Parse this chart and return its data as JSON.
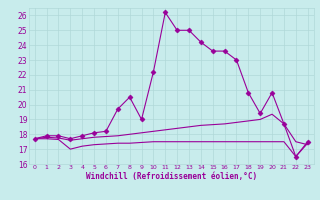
{
  "xlabel": "Windchill (Refroidissement éolien,°C)",
  "xlim": [
    -0.5,
    23.5
  ],
  "ylim": [
    16,
    26.5
  ],
  "yticks": [
    16,
    17,
    18,
    19,
    20,
    21,
    22,
    23,
    24,
    25,
    26
  ],
  "xticks": [
    0,
    1,
    2,
    3,
    4,
    5,
    6,
    7,
    8,
    9,
    10,
    11,
    12,
    13,
    14,
    15,
    16,
    17,
    18,
    19,
    20,
    21,
    22,
    23
  ],
  "background_color": "#c8ecec",
  "grid_color": "#b0d8d8",
  "line_color": "#990099",
  "series": [
    {
      "x": [
        0,
        1,
        2,
        3,
        4,
        5,
        6,
        7,
        8,
        9,
        10,
        11,
        12,
        13,
        14,
        15,
        16,
        17,
        18,
        19,
        20,
        21,
        22,
        23
      ],
      "y": [
        17.7,
        17.9,
        17.9,
        17.7,
        17.9,
        18.1,
        18.2,
        19.7,
        20.5,
        19.0,
        22.2,
        26.2,
        25.0,
        25.0,
        24.2,
        23.6,
        23.6,
        23.0,
        20.8,
        19.4,
        20.8,
        18.7,
        16.5,
        17.5
      ],
      "marker": "D",
      "markersize": 2.5,
      "linestyle": "-"
    },
    {
      "x": [
        0,
        1,
        2,
        3,
        4,
        5,
        6,
        7,
        8,
        9,
        10,
        11,
        12,
        13,
        14,
        15,
        16,
        17,
        18,
        19,
        20,
        21,
        22,
        23
      ],
      "y": [
        17.7,
        17.8,
        17.75,
        17.6,
        17.7,
        17.8,
        17.85,
        17.9,
        18.0,
        18.1,
        18.2,
        18.3,
        18.4,
        18.5,
        18.6,
        18.65,
        18.7,
        18.8,
        18.9,
        19.0,
        19.35,
        18.7,
        17.5,
        17.3
      ],
      "marker": null,
      "markersize": 0,
      "linestyle": "-"
    },
    {
      "x": [
        0,
        1,
        2,
        3,
        4,
        5,
        6,
        7,
        8,
        9,
        10,
        11,
        12,
        13,
        14,
        15,
        16,
        17,
        18,
        19,
        20,
        21,
        22,
        23
      ],
      "y": [
        17.7,
        17.7,
        17.65,
        17.0,
        17.2,
        17.3,
        17.35,
        17.4,
        17.4,
        17.45,
        17.5,
        17.5,
        17.5,
        17.5,
        17.5,
        17.5,
        17.5,
        17.5,
        17.5,
        17.5,
        17.5,
        17.5,
        16.5,
        17.4
      ],
      "marker": null,
      "markersize": 0,
      "linestyle": "-"
    }
  ]
}
